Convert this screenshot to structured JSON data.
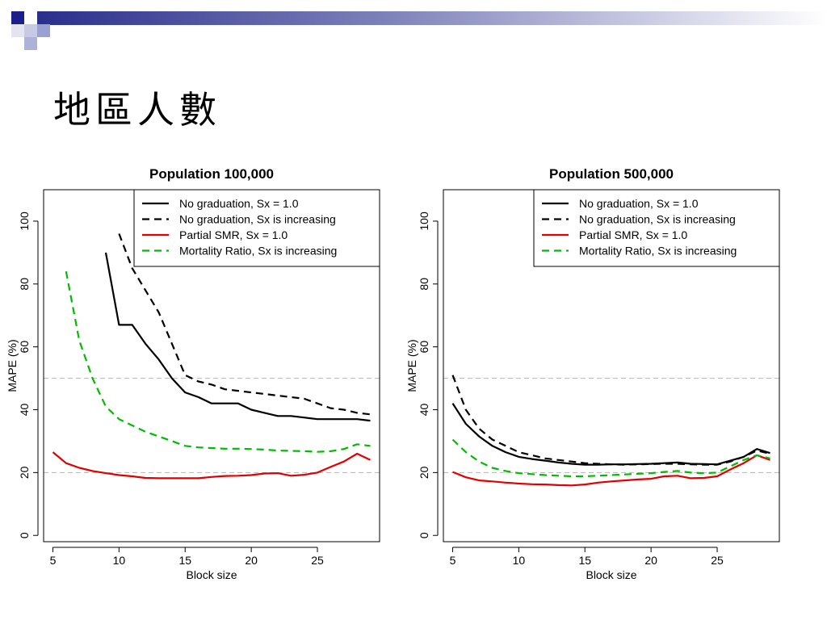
{
  "slide": {
    "title": "地區人數"
  },
  "chart_data": [
    {
      "type": "line",
      "title": "Population 100,000",
      "xlabel": "Block size",
      "ylabel": "MAPE (%)",
      "xlim": [
        4.3,
        29.7
      ],
      "ylim": [
        -2,
        110
      ],
      "xticks": [
        5,
        10,
        15,
        20,
        25
      ],
      "yticks": [
        0,
        20,
        40,
        60,
        80,
        100
      ],
      "reference_lines": [
        20,
        50
      ],
      "legend_position": "top-right",
      "series": [
        {
          "name": "No graduation, Sx = 1.0",
          "color": "#000000",
          "dash": "solid",
          "x": [
            9,
            10,
            11,
            12,
            13,
            14,
            15,
            16,
            17,
            18,
            19,
            20,
            21,
            22,
            23,
            24,
            25,
            26,
            27,
            28,
            29
          ],
          "y": [
            90,
            67,
            67,
            61,
            56,
            50,
            45.5,
            44,
            42,
            42,
            42,
            40,
            39,
            38,
            38,
            37.5,
            37,
            37,
            37,
            37,
            36.5
          ]
        },
        {
          "name": "No graduation, Sx is increasing",
          "color": "#000000",
          "dash": "dashed",
          "x": [
            10,
            11,
            12,
            13,
            14,
            15,
            16,
            17,
            18,
            19,
            20,
            21,
            22,
            23,
            24,
            25,
            26,
            27,
            28,
            29
          ],
          "y": [
            96,
            85,
            78,
            71,
            61,
            51,
            49,
            48,
            46.5,
            46,
            45.5,
            45,
            44.5,
            44,
            43.5,
            42,
            40.5,
            40,
            39,
            38.5
          ]
        },
        {
          "name": "Partial SMR, Sx = 1.0",
          "color": "#e00000",
          "dash": "solid",
          "x": [
            5,
            6,
            7,
            8,
            9,
            10,
            11,
            12,
            13,
            14,
            15,
            16,
            17,
            18,
            19,
            20,
            21,
            22,
            23,
            24,
            25,
            26,
            27,
            28,
            29
          ],
          "y": [
            26.5,
            23,
            21.5,
            20.5,
            19.8,
            19.2,
            18.8,
            18.3,
            18.2,
            18.2,
            18.2,
            18.2,
            18.6,
            18.9,
            19.0,
            19.2,
            19.7,
            19.8,
            19.0,
            19.3,
            20.0,
            21.8,
            23.5,
            26,
            24
          ]
        },
        {
          "name": "Mortality Ratio, Sx is increasing",
          "color": "#00bb00",
          "dash": "dashed",
          "x": [
            6,
            7,
            8,
            9,
            10,
            11,
            12,
            13,
            14,
            15,
            16,
            17,
            18,
            19,
            20,
            21,
            22,
            23,
            24,
            25,
            26,
            27,
            28,
            29
          ],
          "y": [
            84,
            62,
            50,
            41,
            37,
            35,
            33,
            31.5,
            30,
            28.5,
            28,
            27.8,
            27.6,
            27.6,
            27.5,
            27.3,
            27.0,
            26.9,
            26.8,
            26.6,
            26.8,
            27.5,
            29,
            28.5
          ]
        }
      ]
    },
    {
      "type": "line",
      "title": "Population 500,000",
      "xlabel": "Block size",
      "ylabel": "MAPE (%)",
      "xlim": [
        4.3,
        29.7
      ],
      "ylim": [
        -2,
        110
      ],
      "xticks": [
        5,
        10,
        15,
        20,
        25
      ],
      "yticks": [
        0,
        20,
        40,
        60,
        80,
        100
      ],
      "reference_lines": [
        20,
        50
      ],
      "legend_position": "top-right",
      "series": [
        {
          "name": "No graduation, Sx = 1.0",
          "color": "#000000",
          "dash": "solid",
          "x": [
            5,
            6,
            7,
            8,
            9,
            10,
            11,
            12,
            13,
            14,
            15,
            16,
            17,
            18,
            19,
            20,
            21,
            22,
            23,
            24,
            25,
            26,
            27,
            28,
            29
          ],
          "y": [
            42,
            35.5,
            31.5,
            28.5,
            26.5,
            25,
            24.3,
            23.8,
            23.2,
            22.8,
            22.5,
            22.5,
            22.6,
            22.6,
            22.7,
            22.8,
            23.0,
            23.2,
            22.8,
            22.7,
            22.6,
            23.8,
            25.0,
            27.5,
            26.2
          ]
        },
        {
          "name": "No graduation, Sx is increasing",
          "color": "#000000",
          "dash": "dashed",
          "x": [
            5,
            6,
            7,
            8,
            9,
            10,
            11,
            12,
            13,
            14,
            15,
            16,
            17,
            18,
            19,
            20,
            21,
            22,
            23,
            24,
            25,
            26,
            27,
            28,
            29
          ],
          "y": [
            51,
            40,
            34,
            30.5,
            28.5,
            26.5,
            25.5,
            24.5,
            24,
            23.5,
            23.0,
            22.8,
            22.6,
            22.5,
            22.6,
            22.7,
            22.8,
            22.8,
            22.6,
            22.5,
            22.5,
            23.5,
            25,
            27,
            26
          ]
        },
        {
          "name": "Partial SMR, Sx = 1.0",
          "color": "#e00000",
          "dash": "solid",
          "x": [
            5,
            6,
            7,
            8,
            9,
            10,
            11,
            12,
            13,
            14,
            15,
            16,
            17,
            18,
            19,
            20,
            21,
            22,
            23,
            24,
            25,
            26,
            27,
            28,
            29
          ],
          "y": [
            20.2,
            18.5,
            17.5,
            17.2,
            16.8,
            16.5,
            16.3,
            16.2,
            16.0,
            15.9,
            16.2,
            16.8,
            17.2,
            17.5,
            17.8,
            18.0,
            18.8,
            19.0,
            18.2,
            18.3,
            18.8,
            21.0,
            23.0,
            25.5,
            24.0
          ]
        },
        {
          "name": "Mortality Ratio, Sx is increasing",
          "color": "#00bb00",
          "dash": "dashed",
          "x": [
            5,
            6,
            7,
            8,
            9,
            10,
            11,
            12,
            13,
            14,
            15,
            16,
            17,
            18,
            19,
            20,
            21,
            22,
            23,
            24,
            25,
            26,
            27,
            28,
            29
          ],
          "y": [
            30.5,
            26.5,
            23.5,
            21.5,
            20.5,
            19.8,
            19.5,
            19.2,
            19.0,
            18.8,
            18.8,
            19.0,
            19.2,
            19.4,
            19.6,
            19.8,
            20.2,
            20.5,
            20.0,
            19.8,
            20.0,
            22.0,
            24.0,
            25.5,
            24.5
          ]
        }
      ]
    }
  ]
}
